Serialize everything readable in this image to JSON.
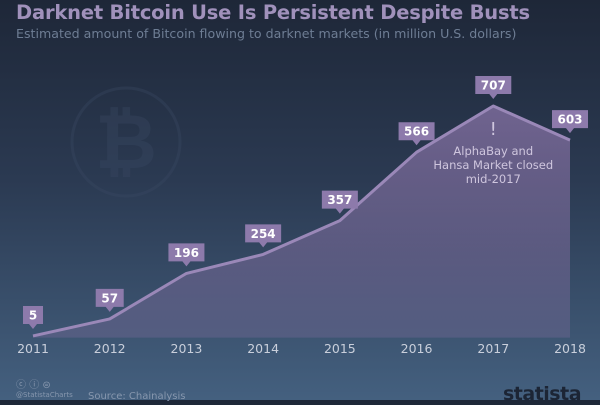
{
  "title": "Darknet Bitcoin Use Is Persistent Despite Busts",
  "subtitle": "Estimated amount of Bitcoin flowing to darknet markets (in million U.S. dollars)",
  "chart_data": {
    "type": "area",
    "categories": [
      "2011",
      "2012",
      "2013",
      "2014",
      "2015",
      "2016",
      "2017",
      "2018"
    ],
    "values": [
      5,
      57,
      196,
      254,
      357,
      566,
      707,
      603
    ],
    "ylim": [
      0,
      707
    ],
    "grid": false,
    "annotation": {
      "symbol": "!",
      "lines": [
        "AlphaBay and",
        "Hansa Market closed",
        "mid-2017"
      ],
      "at": "2017"
    },
    "colors": {
      "line": "#9a88b8",
      "fill": "#7d6c9c",
      "label_bg": "#8d7aab"
    }
  },
  "footer": {
    "handle": "@StatistaCharts",
    "source": "Source: Chainalysis",
    "license_icons": [
      "cc-icon",
      "attribution-icon",
      "no-derivatives-icon"
    ],
    "brand": "statista"
  }
}
